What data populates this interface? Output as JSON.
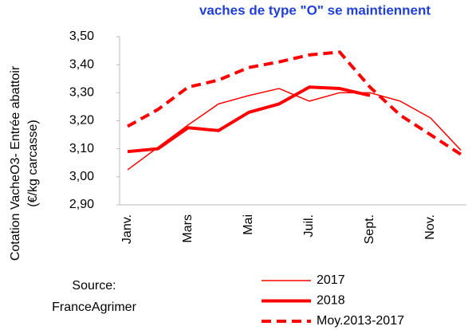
{
  "chart_data": {
    "type": "line",
    "title": "vaches de type \"O\" se maintiennent",
    "y_label": [
      "Cotation  VacheO3- Entrée abattoir",
      "(€/kg carcasse)"
    ],
    "source": [
      "Source:",
      "FranceAgrimer"
    ],
    "categories": [
      "Janv.",
      null,
      "Mars",
      null,
      "Mai",
      null,
      "Juil.",
      null,
      "Sept.",
      null,
      "Nov.",
      null
    ],
    "series": [
      {
        "name": "2017",
        "color": "#ff0000",
        "width": 1.5,
        "dash": false,
        "values": [
          3.025,
          3.105,
          3.185,
          3.26,
          3.29,
          3.315,
          3.27,
          3.3,
          3.3,
          3.27,
          3.21,
          3.095
        ]
      },
      {
        "name": "2018",
        "color": "#ff0000",
        "width": 4,
        "dash": false,
        "values": [
          3.09,
          3.1,
          3.175,
          3.165,
          3.23,
          3.26,
          3.32,
          3.315,
          3.29,
          null,
          null,
          null
        ]
      },
      {
        "name": "Moy.2013-2017",
        "color": "#ff0000",
        "width": 4,
        "dash": true,
        "values": [
          3.18,
          3.24,
          3.32,
          3.345,
          3.39,
          3.41,
          3.435,
          3.445,
          3.32,
          3.22,
          3.15,
          3.08
        ]
      }
    ],
    "ylim": [
      2.9,
      3.5
    ],
    "yticks": [
      {
        "value": 2.9,
        "label": "2,90"
      },
      {
        "value": 3.0,
        "label": "3,00"
      },
      {
        "value": 3.1,
        "label": "3,10"
      },
      {
        "value": 3.2,
        "label": "3,20"
      },
      {
        "value": 3.3,
        "label": "3,30"
      },
      {
        "value": 3.4,
        "label": "3,40"
      },
      {
        "value": 3.5,
        "label": "3,50"
      }
    ],
    "legend": "bottom"
  }
}
